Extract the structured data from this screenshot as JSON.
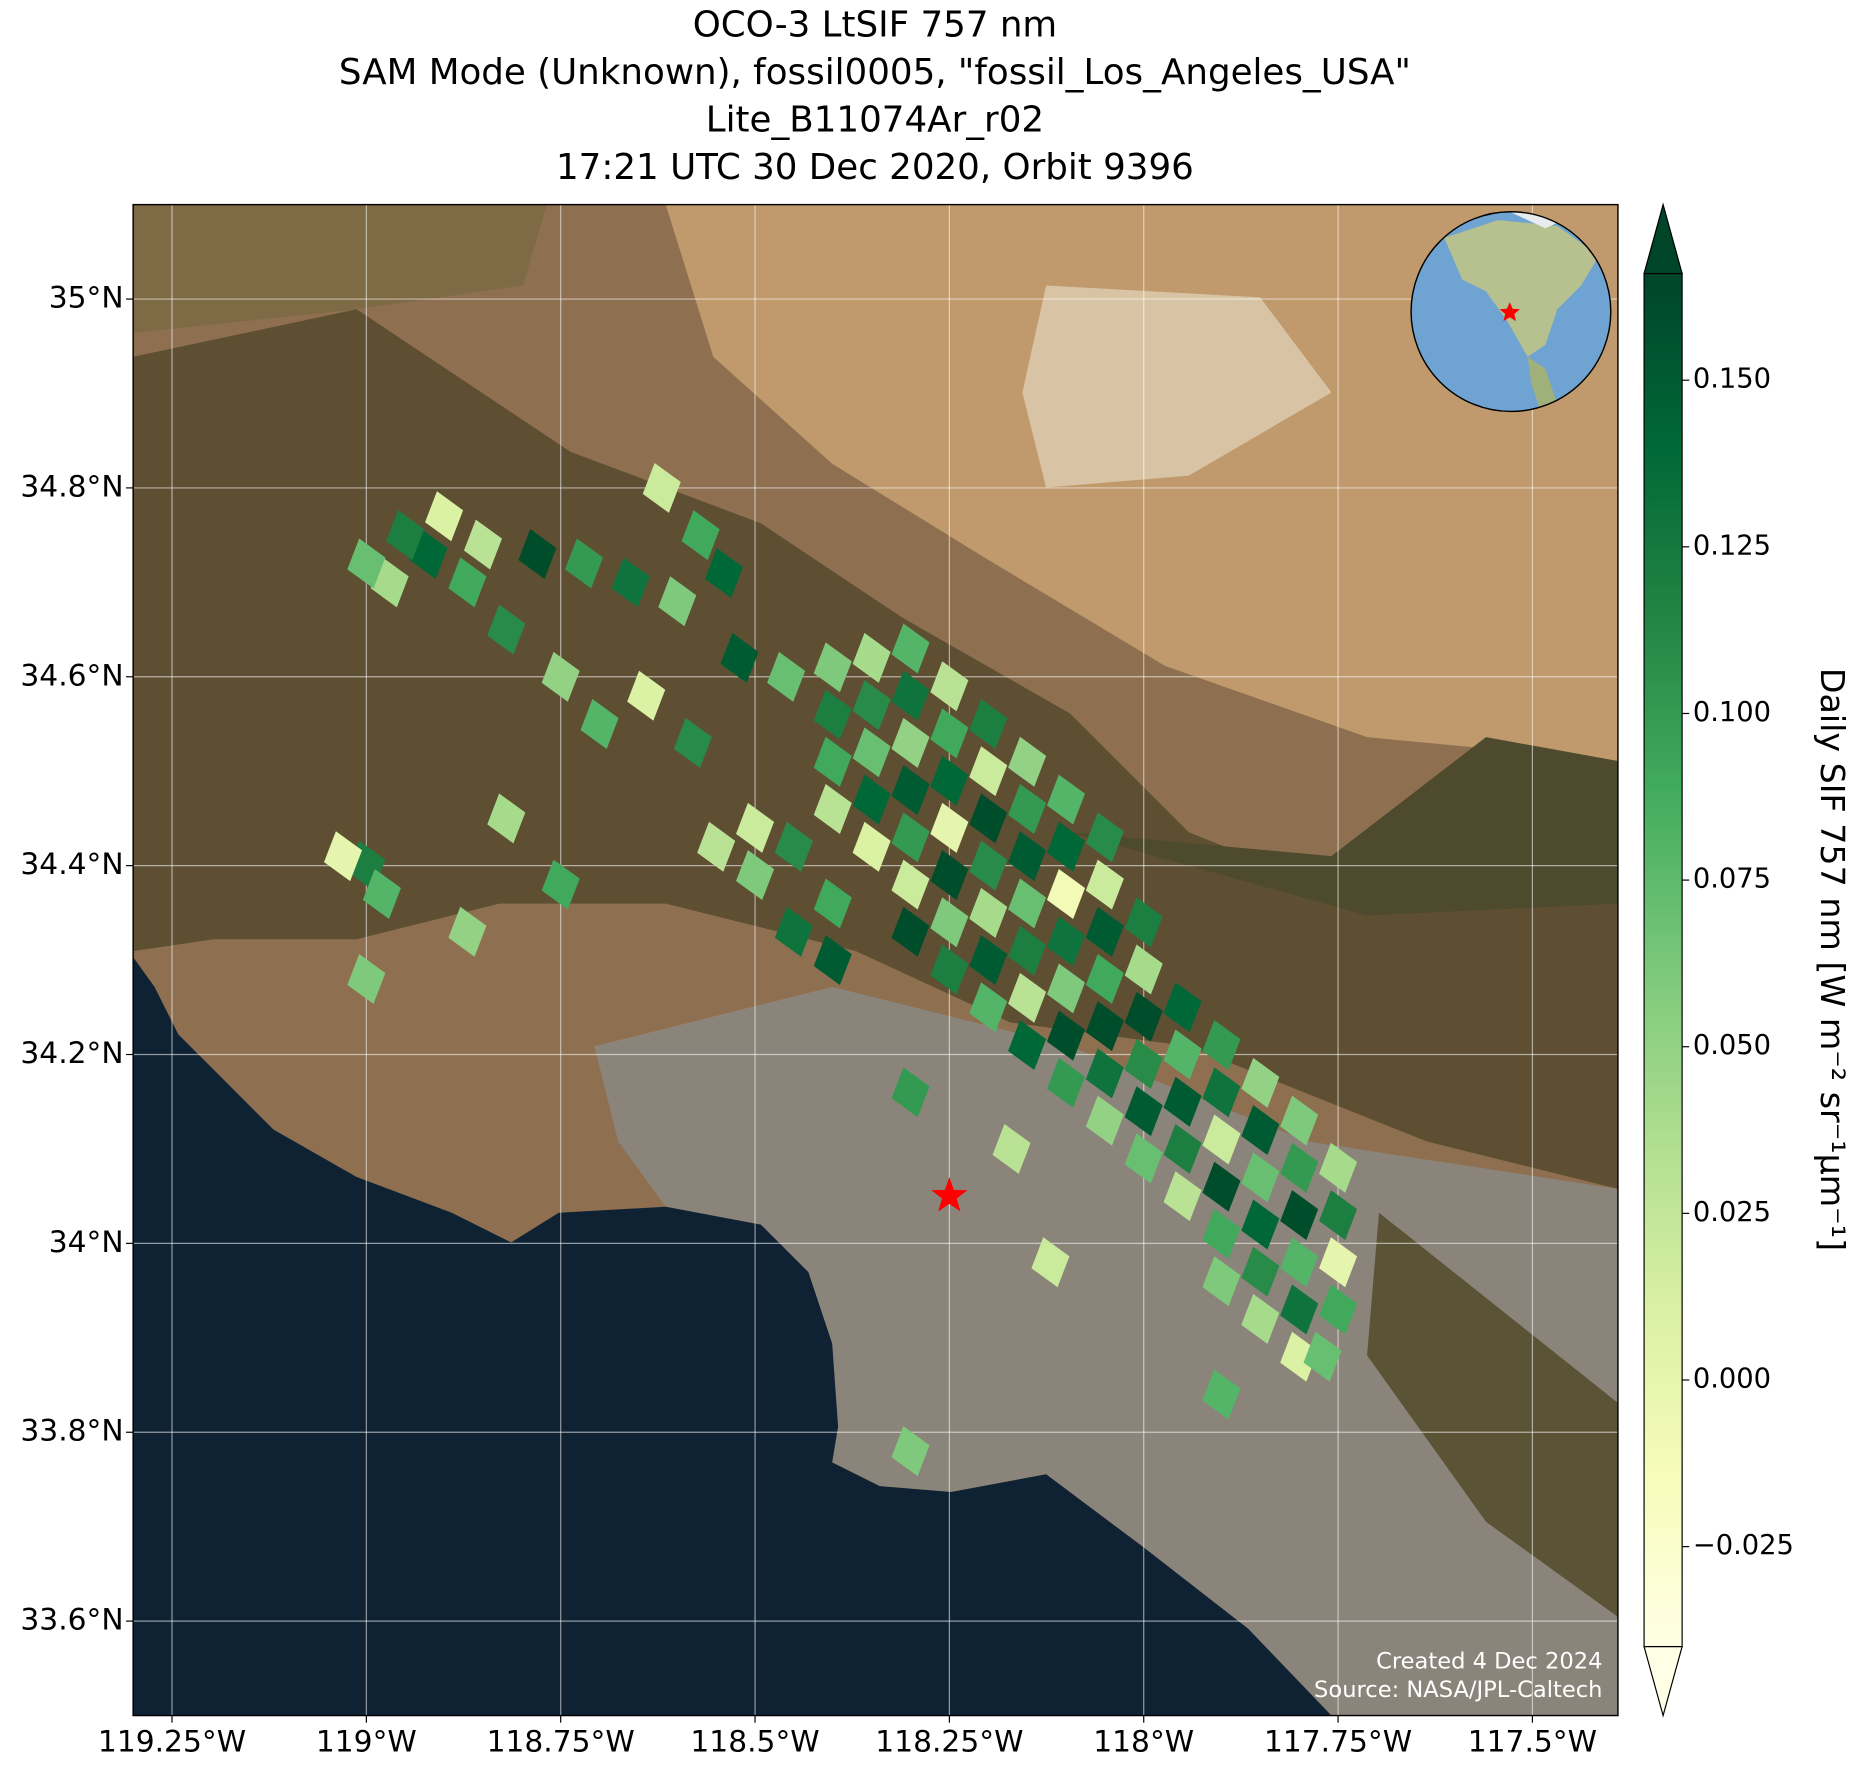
{
  "chart_data": {
    "type": "map",
    "title": [
      "OCO-3 LtSIF 757 nm",
      "SAM Mode (Unknown), fossil0005, \"fossil_Los_Angeles_USA\"",
      "Lite_B11074Ar_r02",
      "17:21 UTC 30 Dec 2020, Orbit 9396"
    ],
    "xlim": [
      -119.3,
      -117.39
    ],
    "ylim": [
      33.5,
      35.1
    ],
    "xticks": [
      {
        "value": -119.25,
        "label": "119.25°W"
      },
      {
        "value": -119,
        "label": "119°W"
      },
      {
        "value": -118.75,
        "label": "118.75°W"
      },
      {
        "value": -118.5,
        "label": "118.5°W"
      },
      {
        "value": -118.25,
        "label": "118.25°W"
      },
      {
        "value": -118,
        "label": "118°W"
      },
      {
        "value": -117.75,
        "label": "117.75°W"
      },
      {
        "value": -117.5,
        "label": "117.5°W"
      }
    ],
    "yticks": [
      {
        "value": 35,
        "label": "35°N"
      },
      {
        "value": 34.8,
        "label": "34.8°N"
      },
      {
        "value": 34.6,
        "label": "34.6°N"
      },
      {
        "value": 34.4,
        "label": "34.4°N"
      },
      {
        "value": 34.2,
        "label": "34.2°N"
      },
      {
        "value": 34,
        "label": "34°N"
      },
      {
        "value": 33.8,
        "label": "33.8°N"
      },
      {
        "value": 33.6,
        "label": "33.6°N"
      }
    ],
    "grid": true,
    "cells": {
      "lon": [
        -118.4,
        -118.4,
        -118.4,
        -118.4,
        -118.35,
        -118.35,
        -118.35,
        -118.35,
        -118.35,
        -118.3,
        -118.3,
        -118.3,
        -118.3,
        -118.3,
        -118.3,
        -118.3,
        -118.25,
        -118.25,
        -118.25,
        -118.25,
        -118.25,
        -118.25,
        -118.25,
        -118.2,
        -118.2,
        -118.2,
        -118.2,
        -118.2,
        -118.2,
        -118.2,
        -118.15,
        -118.15,
        -118.15,
        -118.15,
        -118.15,
        -118.15,
        -118.15,
        -118.1,
        -118.1,
        -118.1,
        -118.1,
        -118.1,
        -118.1,
        -118.1,
        -118.05,
        -118.05,
        -118.05,
        -118.05,
        -118.05,
        -118.05,
        -118.05,
        -118.0,
        -118.0,
        -118.0,
        -118.0,
        -118.0,
        -118.0,
        -117.95,
        -117.95,
        -117.95,
        -117.95,
        -117.95,
        -117.9,
        -117.9,
        -117.9,
        -117.9,
        -117.9,
        -117.9,
        -117.85,
        -117.85,
        -117.85,
        -117.85,
        -117.85,
        -117.85,
        -117.8,
        -117.8,
        -117.8,
        -117.8,
        -117.8,
        -117.8,
        -117.75,
        -117.75,
        -117.75,
        -117.75,
        -118.5,
        -118.5,
        -118.45,
        -118.45,
        -118.55,
        -118.4,
        -118.4,
        -118.3,
        -118.17,
        -118.12,
        -117.77,
        -117.9,
        -118.3,
        -118.92,
        -118.97,
        -118.9,
        -118.87,
        -118.95,
        -119.0,
        -118.85,
        -118.82,
        -118.75,
        -118.7,
        -118.78,
        -118.72,
        -118.66,
        -118.6,
        -118.62,
        -118.57,
        -118.54,
        -118.64,
        -118.58,
        -118.52,
        -118.46,
        -119.0,
        -118.98,
        -119.03,
        -119.0,
        -118.87,
        -118.75,
        -118.82
      ],
      "lat": [
        34.46,
        34.51,
        34.56,
        34.61,
        34.42,
        34.47,
        34.52,
        34.57,
        34.62,
        34.33,
        34.38,
        34.43,
        34.48,
        34.53,
        34.58,
        34.63,
        34.29,
        34.34,
        34.39,
        34.44,
        34.49,
        34.54,
        34.59,
        34.25,
        34.3,
        34.35,
        34.4,
        34.45,
        34.5,
        34.55,
        34.21,
        34.26,
        34.31,
        34.36,
        34.41,
        34.46,
        34.51,
        34.17,
        34.22,
        34.27,
        34.32,
        34.37,
        34.42,
        34.47,
        34.13,
        34.18,
        34.23,
        34.28,
        34.33,
        34.38,
        34.43,
        34.09,
        34.14,
        34.19,
        34.24,
        34.29,
        34.34,
        34.05,
        34.1,
        34.15,
        34.2,
        34.25,
        33.96,
        34.01,
        34.06,
        34.11,
        34.16,
        34.21,
        33.92,
        33.97,
        34.02,
        34.07,
        34.12,
        34.17,
        33.88,
        33.93,
        33.98,
        34.03,
        34.08,
        34.13,
        33.93,
        33.98,
        34.03,
        34.08,
        34.44,
        34.39,
        34.42,
        34.33,
        34.42,
        34.36,
        34.3,
        34.16,
        34.1,
        33.98,
        33.88,
        33.84,
        33.78,
        34.73,
        34.7,
        34.77,
        34.7,
        34.75,
        34.72,
        34.74,
        34.65,
        34.6,
        34.55,
        34.73,
        34.72,
        34.7,
        34.68,
        34.8,
        34.75,
        34.71,
        34.58,
        34.53,
        34.62,
        34.6,
        34.4,
        34.37,
        34.41,
        34.28,
        34.33,
        34.38,
        34.45
      ],
      "values": [
        0.03,
        0.09,
        0.12,
        0.06,
        0.01,
        0.14,
        0.07,
        0.11,
        0.04,
        0.16,
        0.02,
        0.1,
        0.15,
        0.05,
        0.13,
        0.08,
        0.12,
        0.06,
        0.16,
        0.0,
        0.14,
        0.09,
        0.03,
        0.08,
        0.15,
        0.04,
        0.11,
        0.16,
        0.02,
        0.12,
        0.14,
        0.03,
        0.12,
        0.07,
        0.15,
        0.1,
        0.05,
        0.1,
        0.16,
        0.06,
        0.13,
        -0.01,
        0.14,
        0.08,
        0.05,
        0.13,
        0.16,
        0.09,
        0.15,
        0.02,
        0.11,
        0.07,
        0.15,
        0.11,
        0.16,
        0.04,
        0.12,
        0.03,
        0.12,
        0.15,
        0.08,
        0.14,
        0.06,
        0.09,
        0.16,
        0.02,
        0.13,
        0.1,
        0.04,
        0.11,
        0.14,
        0.07,
        0.15,
        0.05,
        0.01,
        0.13,
        0.08,
        0.16,
        0.1,
        0.06,
        0.09,
        0.0,
        0.12,
        0.04,
        0.02,
        0.06,
        0.11,
        0.13,
        0.03,
        0.09,
        0.15,
        0.1,
        0.03,
        0.02,
        0.07,
        0.08,
        0.06,
        0.14,
        0.04,
        0.01,
        0.09,
        0.12,
        0.07,
        0.03,
        0.11,
        0.05,
        0.08,
        0.16,
        0.1,
        0.13,
        0.06,
        0.02,
        0.09,
        0.14,
        0.01,
        0.11,
        0.15,
        0.07,
        0.12,
        0.08,
        0.0,
        0.06,
        0.05,
        0.09,
        0.04
      ]
    },
    "colorbar": {
      "label": "Daily SIF 757 nm [W m⁻² sr⁻¹μm⁻¹]",
      "colormap": "YlGn",
      "clim": [
        -0.04,
        0.166
      ],
      "ticks": [
        {
          "value": -0.025,
          "label": "−0.025"
        },
        {
          "value": 0,
          "label": "0.000"
        },
        {
          "value": 0.025,
          "label": "0.025"
        },
        {
          "value": 0.05,
          "label": "0.050"
        },
        {
          "value": 0.075,
          "label": "0.075"
        },
        {
          "value": 0.1,
          "label": "0.100"
        },
        {
          "value": 0.125,
          "label": "0.125"
        },
        {
          "value": 0.15,
          "label": "0.150"
        }
      ]
    },
    "marker": {
      "lon": -118.25,
      "lat": 34.05,
      "color": "#ff0000"
    },
    "credits": [
      "Created 4 Dec 2024",
      "Source: NASA/JPL-Caltech"
    ]
  }
}
